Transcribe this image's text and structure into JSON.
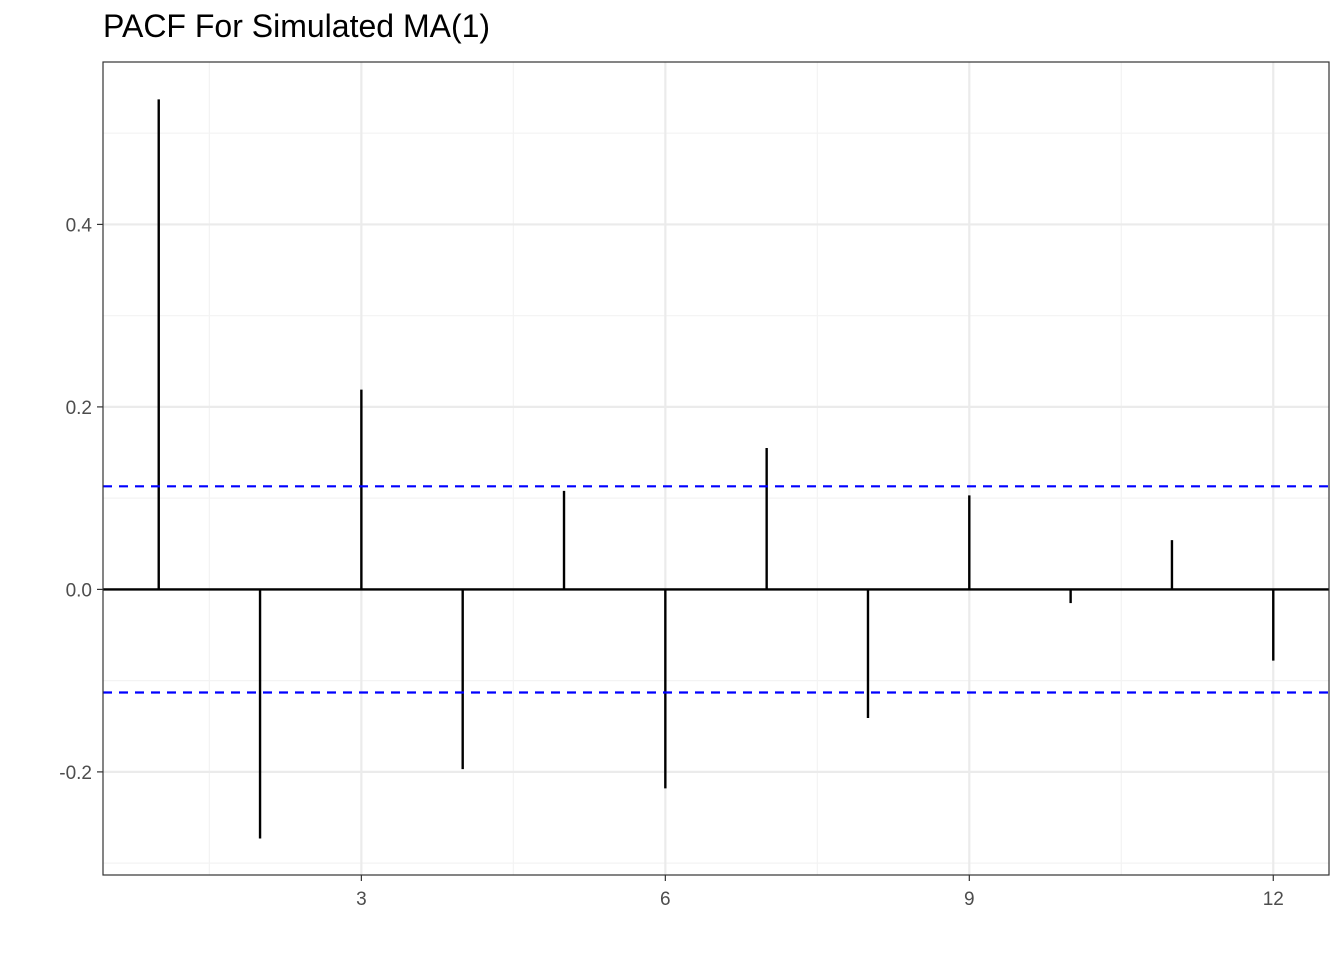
{
  "chart_data": {
    "type": "bar",
    "title": "PACF For Simulated MA(1)",
    "xlabel": "",
    "ylabel": "",
    "x": [
      1,
      2,
      3,
      4,
      5,
      6,
      7,
      8,
      9,
      10,
      11,
      12
    ],
    "values": [
      0.537,
      -0.273,
      0.219,
      -0.197,
      0.108,
      -0.218,
      0.155,
      -0.141,
      0.103,
      -0.015,
      0.054,
      -0.078
    ],
    "confidence_bound": 0.113,
    "xlim": [
      0.45,
      12.55
    ],
    "ylim": [
      -0.313,
      0.578
    ],
    "x_ticks": [
      3,
      6,
      9,
      12
    ],
    "x_tick_labels": [
      "3",
      "6",
      "9",
      "12"
    ],
    "y_ticks": [
      -0.2,
      0.0,
      0.2,
      0.4
    ],
    "y_tick_labels": [
      "-0.2",
      "0.0",
      "0.2",
      "0.4"
    ],
    "grid": true,
    "colors": {
      "bars": "#000000",
      "confidence_lines": "#0000ff",
      "grid_major": "#ebebeb",
      "grid_minor": "#f3f3f3"
    }
  }
}
